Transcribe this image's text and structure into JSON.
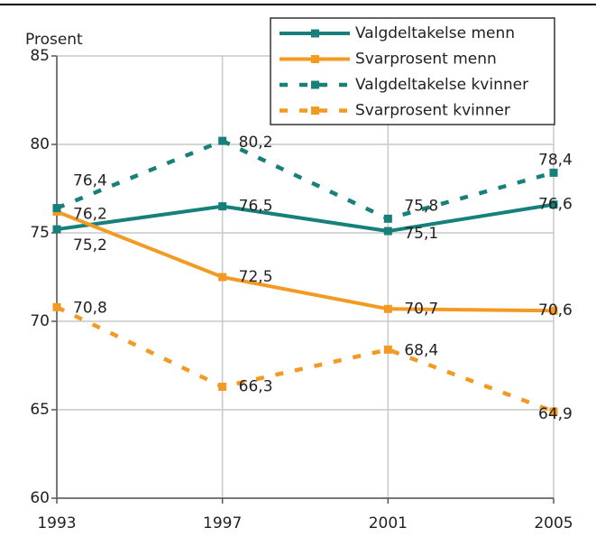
{
  "chart_data": {
    "type": "line",
    "y_label": "Prosent",
    "x": [
      1993,
      1997,
      2001,
      2005
    ],
    "xlim": [
      1993,
      2005
    ],
    "xticks": [
      1993,
      1997,
      2001,
      2005
    ],
    "ylim": [
      60,
      85
    ],
    "yticks": [
      60,
      65,
      70,
      75,
      80,
      85
    ],
    "grid": true,
    "legend": "upper right",
    "series": [
      {
        "name": "Valgdeltakelse menn",
        "color": "#17807b",
        "dashed": false,
        "values": [
          75.2,
          76.5,
          75.1,
          76.6
        ],
        "value_labels": [
          "75,2",
          "76,5",
          "75,1",
          "76,6"
        ]
      },
      {
        "name": "Svarprosent menn",
        "color": "#f39a22",
        "dashed": false,
        "values": [
          76.2,
          72.5,
          70.7,
          70.6
        ],
        "value_labels": [
          "76,2",
          "72,5",
          "70,7",
          "70,6"
        ]
      },
      {
        "name": "Valgdeltakelse kvinner",
        "color": "#17807b",
        "dashed": true,
        "values": [
          76.4,
          80.2,
          75.8,
          78.4
        ],
        "value_labels": [
          "76,4",
          "80,2",
          "75,8",
          "78,4"
        ]
      },
      {
        "name": "Svarprosent kvinner",
        "color": "#f39a22",
        "dashed": true,
        "values": [
          70.8,
          66.3,
          68.4,
          64.9
        ],
        "value_labels": [
          "70,8",
          "66,3",
          "68,4",
          "64,9"
        ]
      }
    ]
  }
}
